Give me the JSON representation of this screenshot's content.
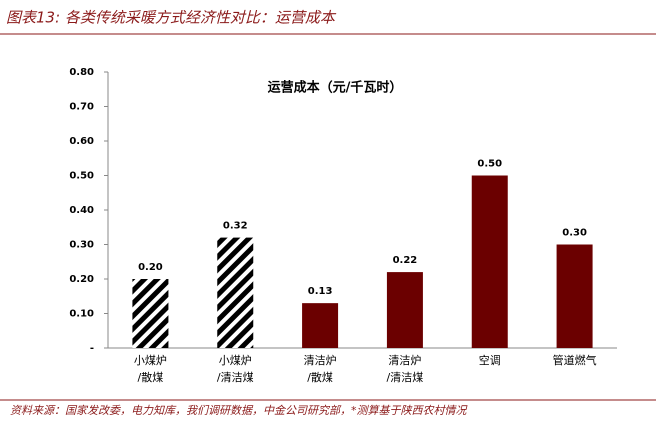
{
  "chart_data": {
    "type": "bar",
    "header": "图表13: 各类传统采暖方式经济性对比：运营成本",
    "title": "运营成本（元/千瓦时）",
    "source": "资料来源：国家发改委，电力知库，我们调研数据，中金公司研究部，*测算基于陕西农村情况",
    "categories": [
      [
        "小煤炉",
        "/散煤"
      ],
      [
        "小煤炉",
        "/清洁煤"
      ],
      [
        "清洁炉",
        "/散煤"
      ],
      [
        "清洁炉",
        "/清洁煤"
      ],
      [
        "空调"
      ],
      [
        "管道燃气"
      ]
    ],
    "values": [
      0.2,
      0.32,
      0.13,
      0.22,
      0.5,
      0.3
    ],
    "value_labels": [
      "0.20",
      "0.32",
      "0.13",
      "0.22",
      "0.50",
      "0.30"
    ],
    "bar_styles": [
      "hatch",
      "hatch",
      "solid",
      "solid",
      "solid",
      "solid"
    ],
    "color": "#6b0000",
    "ylim": [
      0,
      0.8
    ],
    "yticks": [
      {
        "value": 0,
        "label": "-"
      },
      {
        "value": 0.1,
        "label": "0.10"
      },
      {
        "value": 0.2,
        "label": "0.20"
      },
      {
        "value": 0.3,
        "label": "0.30"
      },
      {
        "value": 0.4,
        "label": "0.40"
      },
      {
        "value": 0.5,
        "label": "0.50"
      },
      {
        "value": 0.6,
        "label": "0.60"
      },
      {
        "value": 0.7,
        "label": "0.70"
      },
      {
        "value": 0.8,
        "label": "0.80"
      }
    ]
  }
}
